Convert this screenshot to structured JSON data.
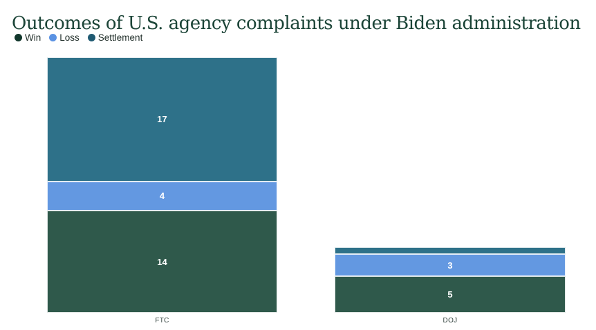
{
  "page": {
    "background_color": "#ffffff"
  },
  "header": {
    "title": "Outcomes of U.S. agency complaints under Biden administration",
    "title_color": "#1b4437"
  },
  "legend": {
    "items": [
      {
        "label": "Win",
        "color": "#12372c"
      },
      {
        "label": "Loss",
        "color": "#5a92e3"
      },
      {
        "label": "Settlement",
        "color": "#1f5a72"
      }
    ]
  },
  "chart_data": {
    "type": "bar",
    "stacked": true,
    "orientation": "vertical",
    "title": "Outcomes of U.S. agency complaints under Biden administration",
    "categories": [
      "FTC",
      "DOJ"
    ],
    "series": [
      {
        "name": "Win",
        "color": "#2f594b",
        "values": [
          14,
          5
        ]
      },
      {
        "name": "Loss",
        "color": "#6398e1",
        "values": [
          4,
          3
        ]
      },
      {
        "name": "Settlement",
        "color": "#2e7189",
        "values": [
          17,
          1
        ]
      }
    ],
    "stack_order_bottom_to_top": [
      "Win",
      "Loss",
      "Settlement"
    ],
    "ylim": [
      0,
      35
    ],
    "gridlines": false,
    "y_axis_shown": false,
    "value_label_color": "#ffffff",
    "axis_label_color": "#33433e",
    "legend_position": "top-left"
  }
}
